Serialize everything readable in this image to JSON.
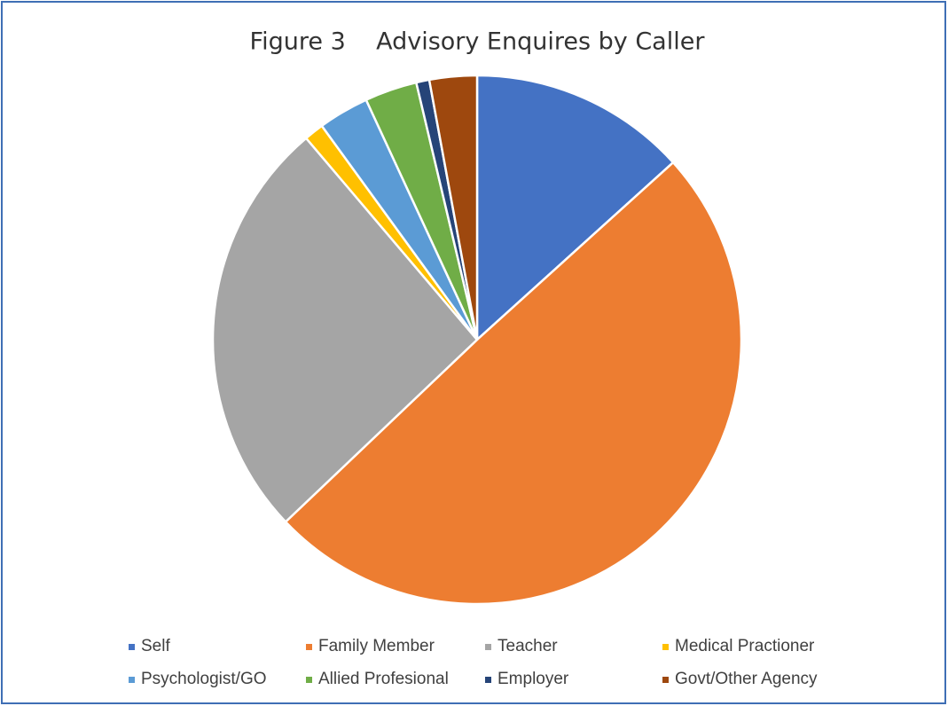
{
  "chart_data": {
    "type": "pie",
    "title": "Figure 3    Advisory Enquires by Caller",
    "categories": [
      "Self",
      "Family Member",
      "Teacher",
      "Medical Practioner",
      "Psychologist/GO",
      "Allied Profesional",
      "Employer",
      "Govt/Other Agency"
    ],
    "values": [
      13.3,
      49.6,
      25.9,
      1.2,
      3.1,
      3.2,
      0.8,
      2.9
    ],
    "colors": [
      "#4472c4",
      "#ed7d31",
      "#a5a5a5",
      "#ffc000",
      "#5b9bd5",
      "#70ad47",
      "#264478",
      "#9e480e"
    ],
    "legend": "bottom"
  }
}
